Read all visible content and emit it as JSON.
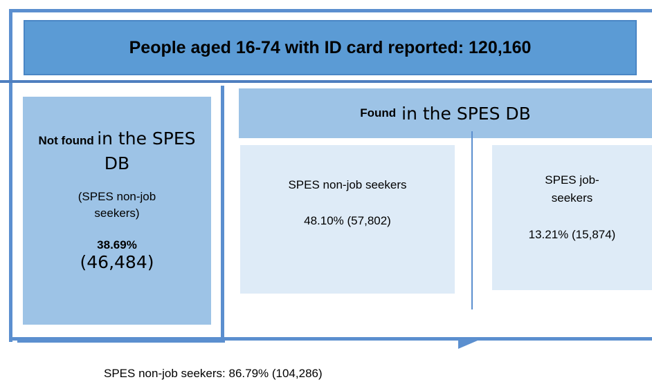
{
  "header": {
    "title": "People aged 16-74 with ID card reported: 120,160"
  },
  "not_found": {
    "bold": "Not found",
    "rest": "in the SPES DB",
    "note": "(SPES non-job seekers)",
    "percent": "38.69%",
    "count": "(46,484)"
  },
  "found": {
    "bold": "Found",
    "rest": "in the SPES DB",
    "groups": [
      {
        "label": "SPES non-job seekers",
        "value": "48.10% (57,802)"
      },
      {
        "label": "SPES job-seekers",
        "value": "13.21% (15,874)"
      }
    ]
  },
  "footer": {
    "summary": "SPES non-job seekers: 86.79% (104,286)"
  }
}
